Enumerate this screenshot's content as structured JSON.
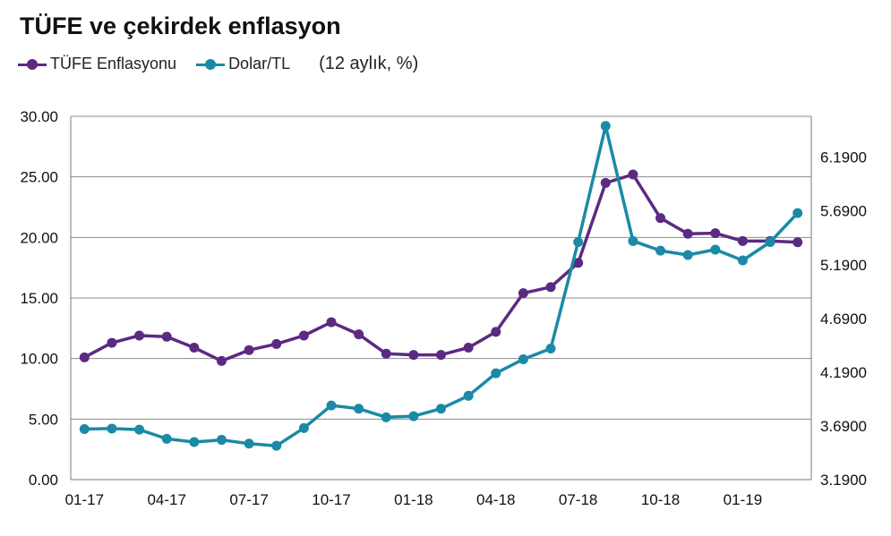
{
  "chart_data": {
    "type": "line",
    "title": "TÜFE ve çekirdek enflasyon",
    "note": "(12 aylık, %)",
    "categories": [
      "01-17",
      "02-17",
      "03-17",
      "04-17",
      "05-17",
      "06-17",
      "07-17",
      "08-17",
      "09-17",
      "10-17",
      "11-17",
      "12-17",
      "01-18",
      "02-18",
      "03-18",
      "04-18",
      "05-18",
      "06-18",
      "07-18",
      "08-18",
      "09-18",
      "10-18",
      "11-18",
      "12-18",
      "01-19",
      "02-19",
      "03-19"
    ],
    "x_tick_labels": [
      "01-17",
      "04-17",
      "07-17",
      "10-17",
      "01-18",
      "04-18",
      "07-18",
      "10-18",
      "01-19"
    ],
    "y_left": {
      "lim": [
        0,
        30
      ],
      "ticks": [
        "0.00",
        "5.00",
        "10.00",
        "15.00",
        "20.00",
        "25.00",
        "30.00"
      ]
    },
    "y_right": {
      "lim": [
        3.19,
        6.57
      ],
      "ticks": [
        "3.1900",
        "3.6900",
        "4.1900",
        "4.6900",
        "5.1900",
        "5.6900",
        "6.1900"
      ]
    },
    "series": [
      {
        "name": "TÜFE Enflasyonu",
        "axis": "left",
        "color": "#5b2a82",
        "values": [
          10.1,
          11.3,
          11.9,
          11.8,
          10.9,
          9.8,
          10.7,
          11.2,
          11.9,
          13.0,
          12.0,
          10.4,
          10.3,
          10.3,
          10.9,
          12.2,
          15.4,
          15.9,
          17.9,
          24.5,
          25.2,
          21.6,
          20.3,
          20.35,
          19.7,
          19.7,
          19.6
        ]
      },
      {
        "name": "Dolar/TL",
        "axis": "right",
        "color": "#1a8aa5",
        "values": [
          3.66,
          3.665,
          3.655,
          3.57,
          3.54,
          3.56,
          3.525,
          3.505,
          3.67,
          3.88,
          3.85,
          3.77,
          3.78,
          3.85,
          3.97,
          4.18,
          4.31,
          4.41,
          5.4,
          6.48,
          5.41,
          5.32,
          5.28,
          5.33,
          5.23,
          5.4,
          5.67
        ]
      }
    ],
    "grid": true,
    "legend": "top-left"
  }
}
